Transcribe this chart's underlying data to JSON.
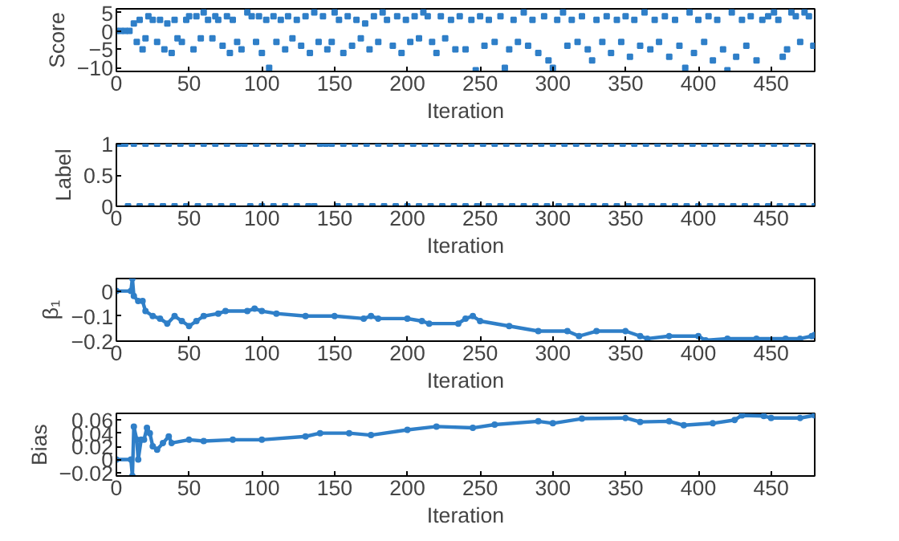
{
  "chart_data": [
    {
      "type": "scatter",
      "xlabel": "Iteration",
      "ylabel": "Score",
      "xlim": [
        0,
        480
      ],
      "ylim": [
        -11,
        6
      ],
      "xticks": [
        0,
        50,
        100,
        150,
        200,
        250,
        300,
        350,
        400,
        450
      ],
      "yticks": [
        -10,
        -5,
        0,
        5
      ],
      "marker": "square",
      "grid": false,
      "series": [
        {
          "color": "#2f7fc8",
          "x": [
            0,
            3,
            6,
            9,
            12,
            14,
            16,
            18,
            20,
            22,
            25,
            28,
            30,
            33,
            35,
            38,
            40,
            42,
            45,
            48,
            50,
            53,
            55,
            58,
            60,
            63,
            66,
            68,
            70,
            73,
            76,
            78,
            80,
            83,
            86,
            90,
            93,
            96,
            98,
            100,
            103,
            105,
            108,
            110,
            113,
            116,
            118,
            121,
            124,
            127,
            130,
            133,
            136,
            139,
            142,
            145,
            148,
            150,
            153,
            156,
            159,
            162,
            165,
            168,
            171,
            174,
            177,
            180,
            183,
            186,
            190,
            193,
            196,
            199,
            202,
            205,
            208,
            211,
            214,
            217,
            220,
            223,
            226,
            230,
            233,
            236,
            240,
            244,
            247,
            250,
            253,
            256,
            260,
            264,
            267,
            270,
            273,
            276,
            280,
            283,
            286,
            290,
            294,
            297,
            300,
            303,
            307,
            310,
            313,
            317,
            320,
            324,
            327,
            330,
            334,
            337,
            340,
            344,
            347,
            350,
            353,
            356,
            360,
            363,
            367,
            370,
            373,
            377,
            380,
            384,
            387,
            391,
            394,
            397,
            400,
            404,
            407,
            410,
            413,
            417,
            420,
            423,
            426,
            430,
            433,
            436,
            440,
            444,
            448,
            452,
            455,
            458,
            461,
            464,
            467,
            470,
            473,
            476,
            479
          ],
          "values": [
            0,
            0,
            0,
            0,
            2,
            -3,
            3,
            -5,
            -2,
            4,
            3,
            -3,
            3,
            -5,
            2,
            -6,
            3,
            -2,
            -3,
            3,
            4,
            -5,
            4,
            -2,
            5,
            3,
            -2,
            4,
            3,
            -4,
            4,
            -6,
            3,
            -3,
            -5,
            5,
            4,
            -3,
            4,
            -6,
            3,
            -10,
            4,
            -3,
            3,
            -5,
            4,
            -2,
            3,
            -4,
            4,
            -6,
            5,
            -3,
            4,
            -5,
            -3,
            5,
            3,
            -6,
            4,
            -4,
            3,
            -2,
            2,
            -5,
            4,
            -3,
            5,
            3,
            -4,
            4,
            -6,
            3,
            -3,
            4,
            -2,
            5,
            4,
            -3,
            -6,
            4,
            -2,
            3,
            -5,
            4,
            -5,
            3,
            -10.7,
            4,
            -4,
            3,
            -3,
            4,
            -10,
            -5,
            3,
            -3,
            5,
            -4,
            3,
            -6,
            4,
            -8,
            -10,
            3,
            5,
            -4,
            3,
            -3,
            4,
            -5,
            -8,
            3,
            -3,
            4,
            -6,
            3,
            -3,
            4,
            -7,
            3,
            -4,
            5,
            -5,
            3,
            -3,
            4,
            -7,
            3,
            -4,
            -10,
            5,
            -6,
            3,
            -3,
            4,
            -8,
            3,
            -5,
            -10.7,
            5,
            -7,
            3,
            -4,
            4,
            -8,
            3,
            4,
            5,
            3,
            -7,
            -5,
            5,
            4,
            -3,
            5,
            4,
            -4
          ]
        }
      ]
    },
    {
      "type": "scatter",
      "xlabel": "Iteration",
      "ylabel": "Label",
      "xlim": [
        0,
        480
      ],
      "ylim": [
        0,
        1
      ],
      "xticks": [
        0,
        50,
        100,
        150,
        200,
        250,
        300,
        350,
        400,
        450
      ],
      "yticks": [
        0,
        0.5,
        1
      ],
      "marker": "square",
      "grid": false,
      "series": [
        {
          "color": "#2f7fc8",
          "x": [
            0,
            3,
            6,
            8,
            12,
            16,
            20,
            24,
            28,
            32,
            36,
            40,
            44,
            48,
            52,
            56,
            60,
            64,
            68,
            72,
            76,
            80,
            84,
            88,
            92,
            96,
            100,
            104,
            108,
            112,
            116,
            120,
            124,
            128,
            132,
            136,
            140,
            144,
            148,
            152,
            156,
            160,
            164,
            168,
            172,
            176,
            180,
            184,
            188,
            192,
            196,
            200,
            204,
            208,
            212,
            216,
            220,
            224,
            228,
            232,
            236,
            240,
            244,
            248,
            252,
            256,
            260,
            264,
            268,
            272,
            276,
            280,
            284,
            288,
            292,
            296,
            300,
            304,
            308,
            312,
            316,
            320,
            324,
            328,
            332,
            336,
            340,
            344,
            348,
            352,
            356,
            360,
            364,
            368,
            372,
            376,
            380,
            384,
            388,
            392,
            396,
            400,
            404,
            408,
            412,
            416,
            420,
            424,
            428,
            432,
            436,
            440,
            444,
            448,
            452,
            456,
            460,
            464,
            468,
            472,
            476,
            480
          ],
          "values": [
            1,
            1,
            1,
            0,
            1,
            0,
            1,
            0,
            1,
            0,
            1,
            0,
            1,
            0,
            1,
            0,
            1,
            0,
            1,
            0,
            1,
            0,
            1,
            1,
            0,
            1,
            0,
            1,
            0,
            1,
            0,
            1,
            0,
            1,
            0,
            0,
            1,
            1,
            1,
            0,
            1,
            0,
            1,
            0,
            1,
            0,
            1,
            0,
            1,
            0,
            1,
            0,
            1,
            0,
            1,
            0,
            1,
            0,
            1,
            0,
            1,
            0,
            1,
            0,
            1,
            0,
            1,
            0,
            1,
            0,
            1,
            0,
            1,
            0,
            1,
            0,
            1,
            0,
            1,
            0,
            1,
            0,
            1,
            0,
            1,
            0,
            1,
            0,
            1,
            0,
            1,
            0,
            1,
            0,
            1,
            0,
            1,
            0,
            1,
            0,
            1,
            0,
            1,
            0,
            1,
            0,
            1,
            0,
            1,
            0,
            1,
            0,
            1,
            0,
            1,
            0,
            1,
            0,
            1,
            0,
            1,
            0
          ]
        }
      ]
    },
    {
      "type": "line",
      "xlabel": "Iteration",
      "ylabel": "β₁",
      "xlim": [
        0,
        480
      ],
      "ylim": [
        -0.2,
        0.05
      ],
      "xticks": [
        0,
        50,
        100,
        150,
        200,
        250,
        300,
        350,
        400,
        450
      ],
      "yticks": [
        -0.2,
        -0.1,
        0
      ],
      "marker": "circle",
      "line_style": "solid",
      "grid": false,
      "series": [
        {
          "color": "#2f7fc8",
          "x": [
            0,
            10,
            11,
            12,
            15,
            18,
            20,
            25,
            30,
            35,
            40,
            45,
            50,
            55,
            60,
            70,
            75,
            90,
            95,
            100,
            110,
            130,
            150,
            170,
            175,
            180,
            200,
            210,
            215,
            235,
            240,
            245,
            250,
            270,
            290,
            310,
            318,
            330,
            350,
            360,
            365,
            380,
            400,
            405,
            420,
            440,
            460,
            470,
            478,
            480
          ],
          "values": [
            0,
            0,
            0.05,
            -0.02,
            -0.04,
            -0.04,
            -0.08,
            -0.1,
            -0.11,
            -0.13,
            -0.1,
            -0.12,
            -0.14,
            -0.12,
            -0.1,
            -0.09,
            -0.08,
            -0.08,
            -0.07,
            -0.08,
            -0.09,
            -0.1,
            -0.1,
            -0.11,
            -0.1,
            -0.11,
            -0.11,
            -0.12,
            -0.13,
            -0.13,
            -0.11,
            -0.1,
            -0.12,
            -0.14,
            -0.16,
            -0.16,
            -0.18,
            -0.16,
            -0.16,
            -0.18,
            -0.19,
            -0.18,
            -0.18,
            -0.197,
            -0.19,
            -0.19,
            -0.19,
            -0.19,
            -0.18,
            -0.175
          ]
        }
      ]
    },
    {
      "type": "line",
      "xlabel": "Iteration",
      "ylabel": "Bias",
      "xlim": [
        0,
        480
      ],
      "ylim": [
        -0.025,
        0.07
      ],
      "xticks": [
        0,
        50,
        100,
        150,
        200,
        250,
        300,
        350,
        400,
        450
      ],
      "yticks": [
        -0.02,
        0,
        0.02,
        0.04,
        0.06
      ],
      "marker": "circle",
      "line_style": "solid",
      "grid": false,
      "series": [
        {
          "color": "#2f7fc8",
          "x": [
            0,
            10,
            11,
            12,
            14,
            15,
            17,
            19,
            21,
            23,
            25,
            28,
            32,
            36,
            38,
            50,
            60,
            80,
            100,
            130,
            140,
            160,
            175,
            200,
            220,
            245,
            260,
            290,
            300,
            320,
            350,
            360,
            380,
            390,
            410,
            425,
            430,
            445,
            450,
            470,
            480
          ],
          "values": [
            0,
            0,
            -0.025,
            0.05,
            0.03,
            0,
            0.03,
            0.03,
            0.048,
            0.04,
            0.02,
            0.015,
            0.025,
            0.035,
            0.025,
            0.03,
            0.028,
            0.03,
            0.03,
            0.035,
            0.04,
            0.04,
            0.037,
            0.045,
            0.05,
            0.048,
            0.053,
            0.058,
            0.055,
            0.062,
            0.063,
            0.057,
            0.058,
            0.052,
            0.055,
            0.06,
            0.067,
            0.066,
            0.063,
            0.063,
            0.067
          ]
        }
      ]
    }
  ]
}
